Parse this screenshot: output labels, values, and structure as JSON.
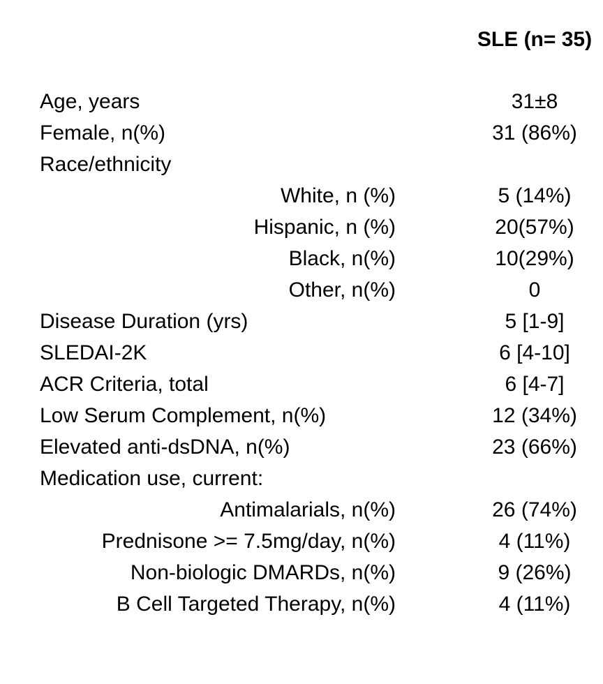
{
  "table": {
    "title_semantic": "SLE cohort demographics and clinical characteristics",
    "header": {
      "group_column_label": "SLE (n= 35)"
    },
    "rows": [
      {
        "label": "Age, years",
        "value": "31±8",
        "indent": false
      },
      {
        "label": "Female, n(%)",
        "value": "31 (86%)",
        "indent": false
      },
      {
        "label": "Race/ethnicity",
        "value": "",
        "indent": false
      },
      {
        "label": "White, n (%)",
        "value": "5 (14%)",
        "indent": true
      },
      {
        "label": "Hispanic, n (%)",
        "value": "20(57%)",
        "indent": true
      },
      {
        "label": "Black, n(%)",
        "value": "10(29%)",
        "indent": true
      },
      {
        "label": "Other, n(%)",
        "value": "0",
        "indent": true
      },
      {
        "label": "Disease Duration (yrs)",
        "value": "5 [1-9]",
        "indent": false
      },
      {
        "label": "SLEDAI-2K",
        "value": "6 [4-10]",
        "indent": false
      },
      {
        "label": "ACR Criteria, total",
        "value": "6 [4-7]",
        "indent": false
      },
      {
        "label": "Low Serum Complement, n(%)",
        "value": "12 (34%)",
        "indent": false
      },
      {
        "label": "Elevated anti-dsDNA, n(%)",
        "value": "23 (66%)",
        "indent": false
      },
      {
        "label": "Medication use, current:",
        "value": "",
        "indent": false
      },
      {
        "label": "Antimalarials, n(%)",
        "value": "26 (74%)",
        "indent": true
      },
      {
        "label": "Prednisone >= 7.5mg/day, n(%)",
        "value": "4 (11%)",
        "indent": true
      },
      {
        "label": "Non-biologic DMARDs, n(%)",
        "value": "9 (26%)",
        "indent": true
      },
      {
        "label": "B Cell Targeted Therapy, n(%)",
        "value": "4 (11%)",
        "indent": true
      }
    ]
  },
  "colors": {
    "text": "#000000",
    "background": "#ffffff"
  }
}
